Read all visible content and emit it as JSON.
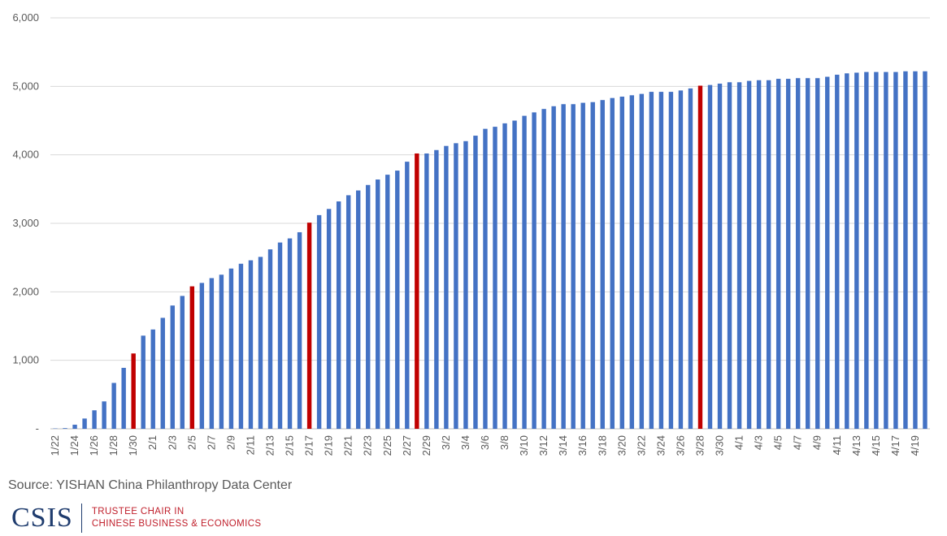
{
  "chart_data": {
    "type": "bar",
    "title": "",
    "xlabel": "",
    "ylabel": "",
    "ylim": [
      0,
      6000
    ],
    "y_ticks": [
      0,
      1000,
      2000,
      3000,
      4000,
      5000,
      6000
    ],
    "y_tick_labels": [
      "-",
      "1,000",
      "2,000",
      "3,000",
      "4,000",
      "5,000",
      "6,000"
    ],
    "grid": true,
    "legend": "none",
    "bar_color": "#4472c4",
    "highlight_color": "#c00000",
    "highlight_categories": [
      "1/30",
      "2/5",
      "2/17",
      "2/28",
      "3/28"
    ],
    "categories": [
      "1/22",
      "1/23",
      "1/24",
      "1/25",
      "1/26",
      "1/27",
      "1/28",
      "1/29",
      "1/30",
      "1/31",
      "2/1",
      "2/2",
      "2/3",
      "2/4",
      "2/5",
      "2/6",
      "2/7",
      "2/8",
      "2/9",
      "2/10",
      "2/11",
      "2/12",
      "2/13",
      "2/14",
      "2/15",
      "2/16",
      "2/17",
      "2/18",
      "2/19",
      "2/20",
      "2/21",
      "2/22",
      "2/23",
      "2/24",
      "2/25",
      "2/26",
      "2/27",
      "2/28",
      "2/29",
      "3/1",
      "3/2",
      "3/3",
      "3/4",
      "3/5",
      "3/6",
      "3/7",
      "3/8",
      "3/9",
      "3/10",
      "3/11",
      "3/12",
      "3/13",
      "3/14",
      "3/15",
      "3/16",
      "3/17",
      "3/18",
      "3/19",
      "3/20",
      "3/21",
      "3/22",
      "3/23",
      "3/24",
      "3/25",
      "3/26",
      "3/27",
      "3/28",
      "3/29",
      "3/30",
      "3/31",
      "4/1",
      "4/2",
      "4/3",
      "4/4",
      "4/5",
      "4/6",
      "4/7",
      "4/8",
      "4/9",
      "4/10",
      "4/11",
      "4/12",
      "4/13",
      "4/14",
      "4/15",
      "4/16",
      "4/17",
      "4/18",
      "4/19",
      "4/20"
    ],
    "values": [
      5,
      10,
      60,
      150,
      270,
      400,
      670,
      890,
      1100,
      1360,
      1450,
      1620,
      1800,
      1940,
      2080,
      2130,
      2200,
      2250,
      2340,
      2410,
      2460,
      2510,
      2620,
      2720,
      2780,
      2870,
      3010,
      3120,
      3210,
      3320,
      3410,
      3480,
      3560,
      3640,
      3710,
      3770,
      3900,
      4020,
      4020,
      4070,
      4130,
      4170,
      4200,
      4280,
      4380,
      4410,
      4460,
      4500,
      4570,
      4620,
      4670,
      4710,
      4740,
      4740,
      4760,
      4770,
      4800,
      4830,
      4850,
      4870,
      4890,
      4920,
      4920,
      4920,
      4940,
      4970,
      5010,
      5020,
      5040,
      5060,
      5060,
      5080,
      5090,
      5090,
      5110,
      5110,
      5120,
      5120,
      5120,
      5140,
      5170,
      5190,
      5200,
      5210,
      5210,
      5210,
      5210,
      5220,
      5220,
      5220
    ],
    "x_tick_labels_every": 2
  },
  "source_note": "Source: YISHAN China Philanthropy Data Center",
  "logo": {
    "org": "CSIS",
    "line1": "TRUSTEE CHAIR IN",
    "line2": "CHINESE BUSINESS & ECONOMICS",
    "navy": "#1f3c6e",
    "red": "#c0202c"
  }
}
